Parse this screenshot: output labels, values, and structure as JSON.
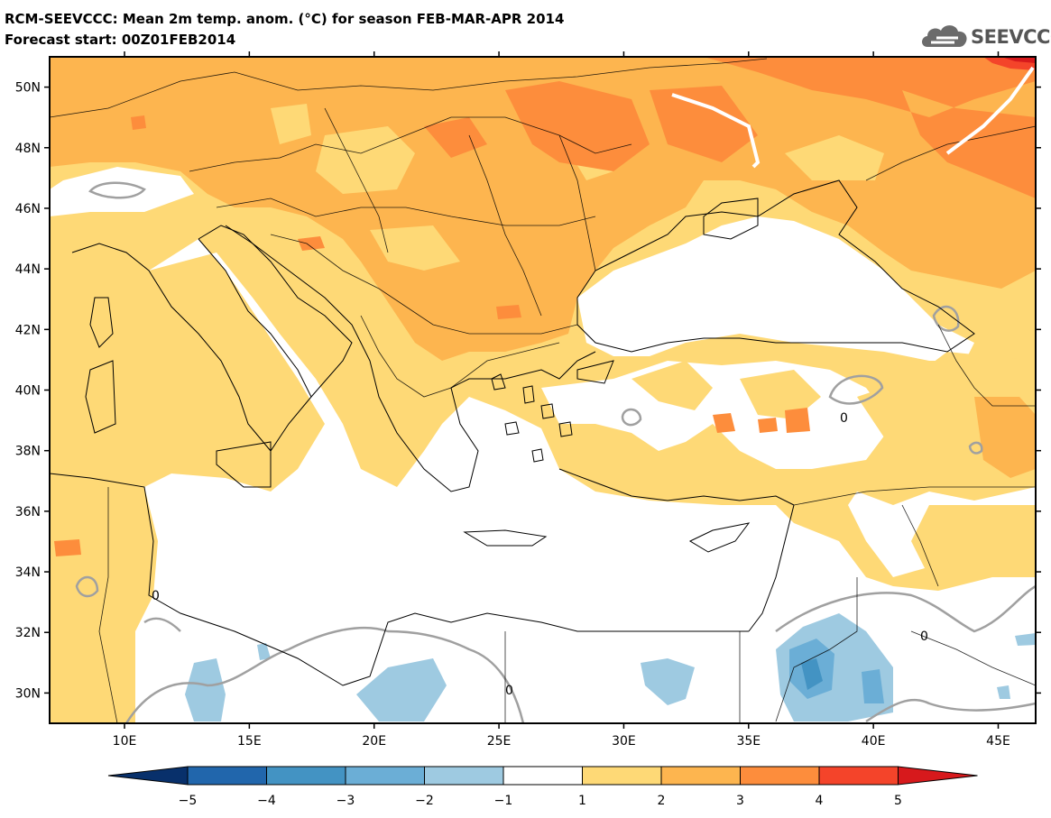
{
  "header": {
    "title": "RCM-SEEVCCC: Mean 2m temp. anom. (°C) for season FEB-MAR-APR 2014",
    "subtitle": "Forecast start: 00Z01FEB2014"
  },
  "logo": {
    "text": "SEEVCCC",
    "icon": "cloud-icon"
  },
  "map": {
    "lat_labels": [
      "50N",
      "48N",
      "46N",
      "44N",
      "42N",
      "40N",
      "38N",
      "36N",
      "34N",
      "32N",
      "30N"
    ],
    "lon_labels": [
      "10E",
      "15E",
      "20E",
      "25E",
      "30E",
      "35E",
      "40E",
      "45E"
    ],
    "lon_range": [
      7,
      46.5
    ],
    "lat_range": [
      29,
      51
    ],
    "contour_labels": [
      "0",
      "0",
      "0",
      "0"
    ]
  },
  "colorbar": {
    "labels": [
      "-5",
      "-4",
      "-3",
      "-2",
      "-1",
      "1",
      "2",
      "3",
      "4",
      "5"
    ],
    "colors": {
      "below_-5": "#08306b",
      "-5_-4": "#2166ac",
      "-4_-3": "#4393c3",
      "-3_-2": "#6baed6",
      "-2_-1": "#9ecae1",
      "-1_1": "#ffffff",
      "1_2": "#fed976",
      "2_3": "#fdb54f",
      "3_4": "#fd8d3c",
      "4_5": "#f4442a",
      "above_5": "#d7191c"
    }
  }
}
